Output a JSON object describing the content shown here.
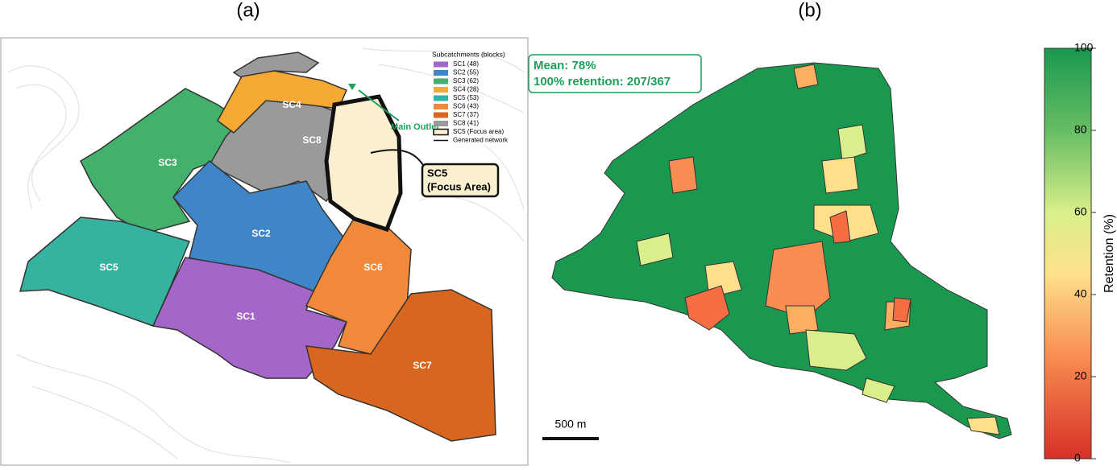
{
  "panel_a": {
    "title": "(a)",
    "legend": {
      "title": "Subcatchments (blocks)",
      "items": [
        {
          "label": "SC1 (48)",
          "color": "#a566c9"
        },
        {
          "label": "SC2 (55)",
          "color": "#3f86c8"
        },
        {
          "label": "SC3 (62)",
          "color": "#43b06c"
        },
        {
          "label": "SC4 (28)",
          "color": "#f5a833"
        },
        {
          "label": "SC5 (53)",
          "color": "#36b3a0"
        },
        {
          "label": "SC6 (43)",
          "color": "#f0893a"
        },
        {
          "label": "SC7 (37)",
          "color": "#d9661e"
        },
        {
          "label": "SC8 (41)",
          "color": "#9a9a9a"
        },
        {
          "label": "SC5 (Focus area)",
          "color": "#fbefcf"
        },
        {
          "label": "Generated network",
          "color": "#111111"
        }
      ]
    },
    "region_labels": [
      "SC1",
      "SC2",
      "SC3",
      "SC4",
      "SC5",
      "SC6",
      "SC7",
      "SC8"
    ],
    "outlet_label": "Main Outlet",
    "focus_label": [
      "SC5",
      "(Focus Area)"
    ]
  },
  "panel_b": {
    "title": "(b)",
    "stats": [
      "Mean: 78%",
      "100% retention: 207/367"
    ],
    "scale_bar": "500 m",
    "colorbar": {
      "label": "Retention (%)",
      "lim": [
        0,
        100
      ],
      "ticks": [
        0,
        20,
        40,
        60,
        80,
        100
      ]
    }
  }
}
